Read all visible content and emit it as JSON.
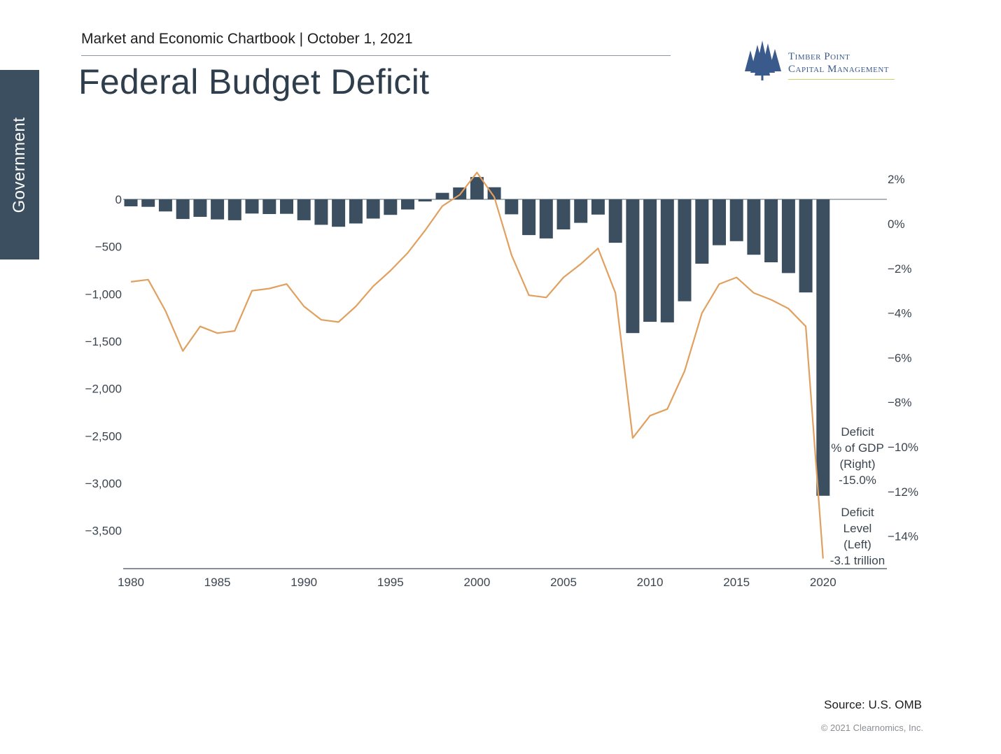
{
  "sidebar": {
    "label": "Government"
  },
  "header": {
    "subtitle": "Market and Economic Chartbook | October 1, 2021",
    "title": "Federal Budget Deficit"
  },
  "logo": {
    "line1": "Timber Point",
    "line2": "Capital Management"
  },
  "footer": {
    "source": "Source: U.S. OMB",
    "copyright": "© 2021 Clearnomics, Inc."
  },
  "colors": {
    "bars": "#3b4f60",
    "line": "#e0a060",
    "axis": "#5a6a78"
  },
  "chart_data": {
    "type": "bar+line",
    "title": "Federal Budget Deficit",
    "x": [
      1980,
      1981,
      1982,
      1983,
      1984,
      1985,
      1986,
      1987,
      1988,
      1989,
      1990,
      1991,
      1992,
      1993,
      1994,
      1995,
      1996,
      1997,
      1998,
      1999,
      2000,
      2001,
      2002,
      2003,
      2004,
      2005,
      2006,
      2007,
      2008,
      2009,
      2010,
      2011,
      2012,
      2013,
      2014,
      2015,
      2016,
      2017,
      2018,
      2019,
      2020
    ],
    "x_ticks": [
      "1980",
      "1985",
      "1990",
      "1995",
      "2000",
      "2005",
      "2010",
      "2015",
      "2020"
    ],
    "y_left": {
      "ylim": [
        -3900,
        200
      ],
      "ticks": [
        0,
        -500,
        -1000,
        -1500,
        -2000,
        -2500,
        -3000,
        -3500
      ],
      "tick_labels": [
        "0",
        "−500",
        "−1,000",
        "−1,500",
        "−2,000",
        "−2,500",
        "−3,000",
        "−3,500"
      ]
    },
    "y_right": {
      "ylim": [
        -15.5,
        2.5
      ],
      "ticks": [
        2,
        0,
        -2,
        -4,
        -6,
        -8,
        -10,
        -12,
        -14
      ],
      "tick_labels": [
        "2%",
        "0%",
        "−2%",
        "−4%",
        "−6%",
        "−8%",
        "−10%",
        "−12%",
        "−14%"
      ]
    },
    "series": [
      {
        "name": "Deficit Level (Left)",
        "kind": "bar",
        "axis": "left",
        "values": [
          -74,
          -79,
          -128,
          -208,
          -185,
          -212,
          -221,
          -150,
          -155,
          -153,
          -221,
          -269,
          -290,
          -255,
          -203,
          -164,
          -107,
          -22,
          69,
          126,
          236,
          128,
          -158,
          -378,
          -413,
          -318,
          -248,
          -161,
          -459,
          -1413,
          -1294,
          -1300,
          -1077,
          -680,
          -485,
          -442,
          -585,
          -665,
          -779,
          -984,
          -3132
        ]
      },
      {
        "name": "Deficit % of GDP (Right)",
        "kind": "line",
        "axis": "right",
        "values": [
          -2.6,
          -2.5,
          -3.9,
          -5.7,
          -4.6,
          -4.9,
          -4.8,
          -3.0,
          -2.9,
          -2.7,
          -3.7,
          -4.3,
          -4.4,
          -3.7,
          -2.8,
          -2.1,
          -1.3,
          -0.3,
          0.8,
          1.3,
          2.3,
          1.2,
          -1.4,
          -3.2,
          -3.3,
          -2.4,
          -1.8,
          -1.1,
          -3.1,
          -9.6,
          -8.6,
          -8.3,
          -6.6,
          -4.0,
          -2.7,
          -2.4,
          -3.1,
          -3.4,
          -3.8,
          -4.6,
          -15.0
        ]
      }
    ],
    "annotations": [
      {
        "lines": [
          "Deficit",
          "% of GDP",
          "(Right)",
          "-15.0%"
        ]
      },
      {
        "lines": [
          "Deficit",
          "Level",
          "(Left)",
          "-3.1 trillion"
        ]
      }
    ]
  }
}
